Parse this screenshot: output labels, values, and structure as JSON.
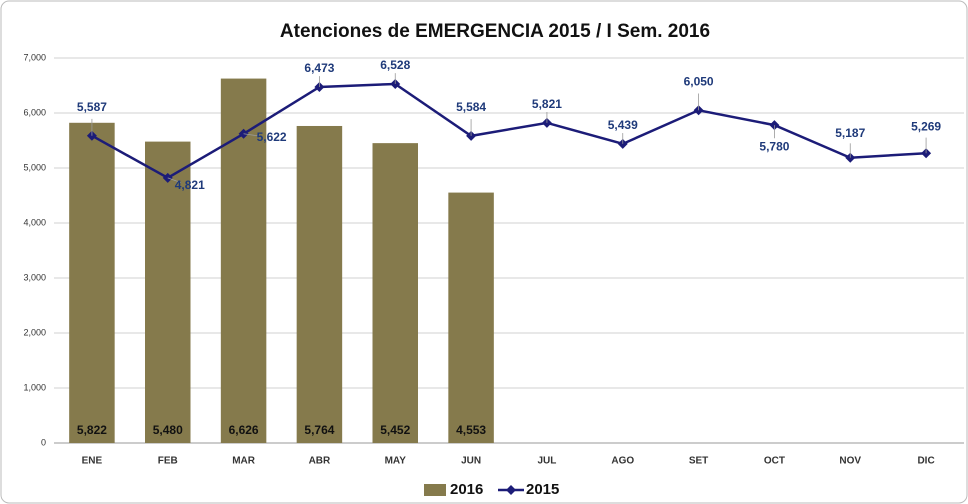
{
  "chart_data": {
    "type": "combo",
    "title": "Atenciones de EMERGENCIA 2015 / I Sem. 2016",
    "categories": [
      "ENE",
      "FEB",
      "MAR",
      "ABR",
      "MAY",
      "JUN",
      "JUL",
      "AGO",
      "SET",
      "OCT",
      "NOV",
      "DIC"
    ],
    "series": [
      {
        "name": "2016",
        "type": "bar",
        "color": "#857a4c",
        "values": [
          5822,
          5480,
          6626,
          5764,
          5452,
          4553,
          null,
          null,
          null,
          null,
          null,
          null
        ],
        "value_labels": [
          "5,822",
          "5,480",
          "6,626",
          "5,764",
          "5,452",
          "4,553",
          null,
          null,
          null,
          null,
          null,
          null
        ]
      },
      {
        "name": "2015",
        "type": "line",
        "color": "#1c1c78",
        "values": [
          5587,
          4821,
          5622,
          6473,
          6528,
          5584,
          5821,
          5439,
          6050,
          5780,
          5187,
          5269
        ],
        "value_labels": [
          "5,587",
          "4,821",
          "5,622",
          "6,473",
          "6,528",
          "5,584",
          "5,821",
          "5,439",
          "6,050",
          "5,780",
          "5,187",
          "5,269"
        ]
      }
    ],
    "ylim": [
      0,
      7000
    ],
    "yticks": [
      0,
      {
        "value": 1000,
        "label": "1,000"
      },
      {
        "value": 2000,
        "label": "2,000"
      },
      {
        "value": 3000,
        "label": "3,000"
      },
      {
        "value": 4000,
        "label": "4,000"
      },
      {
        "value": 5000,
        "label": "5,000"
      },
      {
        "value": 6000,
        "label": "6,000"
      },
      {
        "value": 7000,
        "label": "7,000"
      }
    ],
    "grid": true,
    "legend": "bottom"
  }
}
